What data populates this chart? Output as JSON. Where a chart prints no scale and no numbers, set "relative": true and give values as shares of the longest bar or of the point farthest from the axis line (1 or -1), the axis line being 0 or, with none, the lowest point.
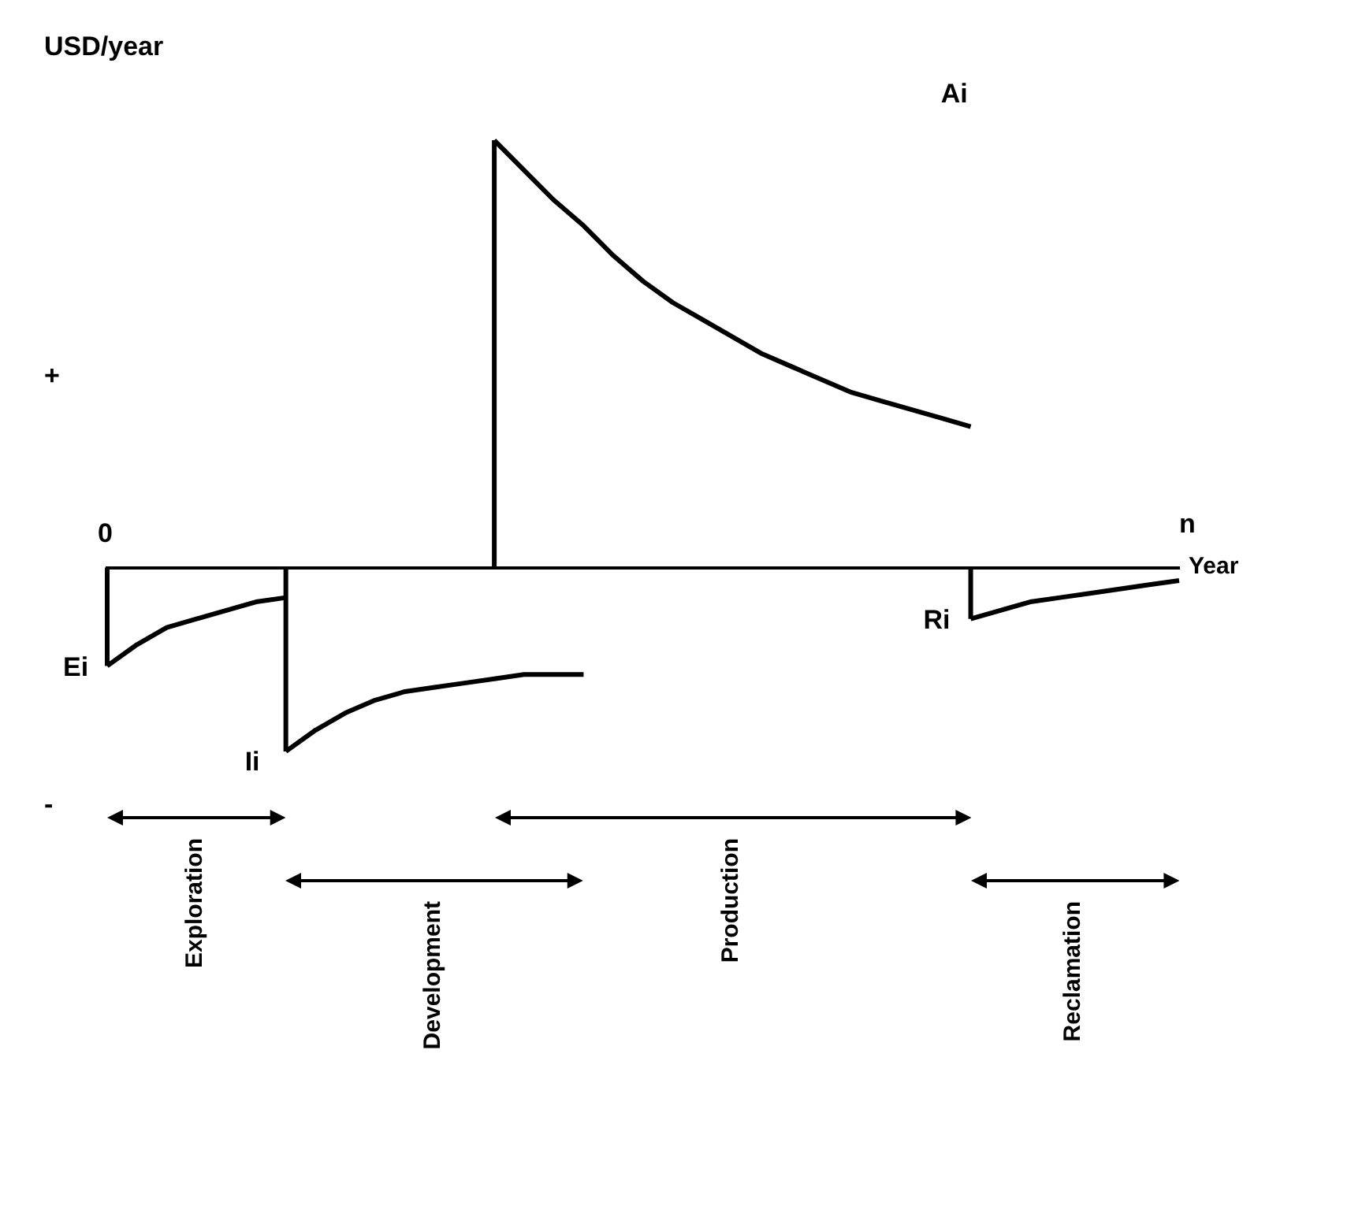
{
  "chart_data": {
    "type": "line",
    "relative": true,
    "ylabel": "USD/year",
    "xlabel": "Year",
    "legend": false,
    "grid": false,
    "marker": "none",
    "categories": [
      null,
      null,
      null,
      null,
      null,
      null,
      null,
      null,
      null,
      null,
      null,
      null,
      null,
      null,
      null,
      null,
      null,
      null,
      null,
      null,
      null,
      null,
      null,
      null,
      null,
      null,
      null,
      null,
      null,
      null,
      null,
      null,
      null,
      null,
      null,
      null,
      null
    ],
    "series": [
      {
        "color": "#000000",
        "values": [
          -0.23,
          -0.18,
          -0.14,
          -0.12,
          -0.1,
          -0.08,
          -0.07,
          null,
          null,
          null,
          null,
          null,
          null,
          null,
          null,
          null,
          null,
          null,
          null,
          null,
          null,
          null,
          null,
          null,
          null,
          null,
          null,
          null,
          null,
          null,
          null,
          null,
          null,
          null,
          null,
          null,
          null
        ]
      },
      {
        "color": "#000000",
        "values": [
          null,
          null,
          null,
          null,
          null,
          null,
          -0.43,
          -0.38,
          -0.34,
          -0.31,
          -0.29,
          -0.28,
          -0.27,
          -0.26,
          -0.25,
          -0.25,
          -0.25,
          null,
          null,
          null,
          null,
          null,
          null,
          null,
          null,
          null,
          null,
          null,
          null,
          null,
          null,
          null,
          null,
          null,
          null,
          null,
          null
        ]
      },
      {
        "color": "#000000",
        "values": [
          null,
          null,
          null,
          null,
          null,
          null,
          null,
          null,
          null,
          null,
          null,
          null,
          null,
          1.0,
          0.93,
          0.86,
          0.8,
          0.73,
          0.67,
          0.62,
          0.58,
          0.54,
          0.5,
          0.47,
          0.44,
          0.41,
          0.39,
          0.37,
          0.35,
          0.33,
          null,
          null,
          null,
          null,
          null,
          null,
          null
        ]
      },
      {
        "color": "#000000",
        "values": [
          null,
          null,
          null,
          null,
          null,
          null,
          null,
          null,
          null,
          null,
          null,
          null,
          null,
          null,
          null,
          null,
          null,
          null,
          null,
          null,
          null,
          null,
          null,
          null,
          null,
          null,
          null,
          null,
          null,
          -0.12,
          -0.1,
          -0.08,
          -0.07,
          -0.06,
          -0.05,
          -0.04,
          -0.03
        ]
      }
    ],
    "annotations": [
      "+",
      "-",
      "0",
      "n",
      "Ei",
      "Ii",
      "Ai",
      "Ri",
      "Exploration",
      "Development",
      "Production",
      "Reclamation"
    ]
  }
}
